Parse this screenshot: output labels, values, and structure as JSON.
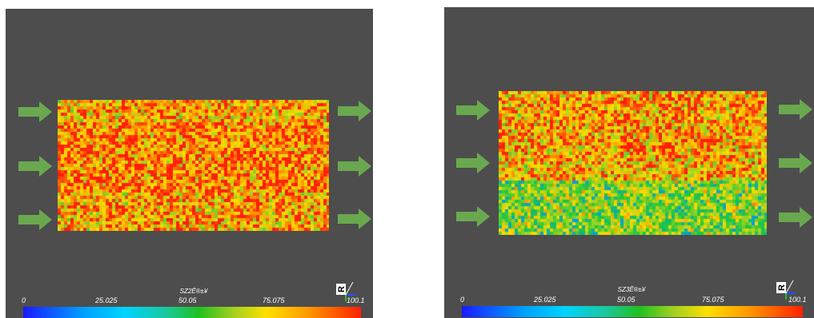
{
  "panels": [
    {
      "id": "left",
      "field_variant": "sz2",
      "colorbar": {
        "title": "SZ2Ê®±¥",
        "ticks": [
          "0",
          "25.025",
          "50.05",
          "75.075",
          "100.1"
        ]
      },
      "axes_label": "R"
    },
    {
      "id": "right",
      "field_variant": "sz3",
      "colorbar": {
        "title": "SZ3Ê®±¥",
        "ticks": [
          "0",
          "25.025",
          "50.05",
          "75.075",
          "100.1"
        ]
      },
      "axes_label": "R"
    }
  ],
  "colors": {
    "background": "#4d4d4d",
    "arrow": "#6aa84f",
    "colormap": [
      "#1a1aff",
      "#00a0ff",
      "#00d4ff",
      "#20c020",
      "#ffe000",
      "#ff9a00",
      "#ff2000"
    ]
  }
}
